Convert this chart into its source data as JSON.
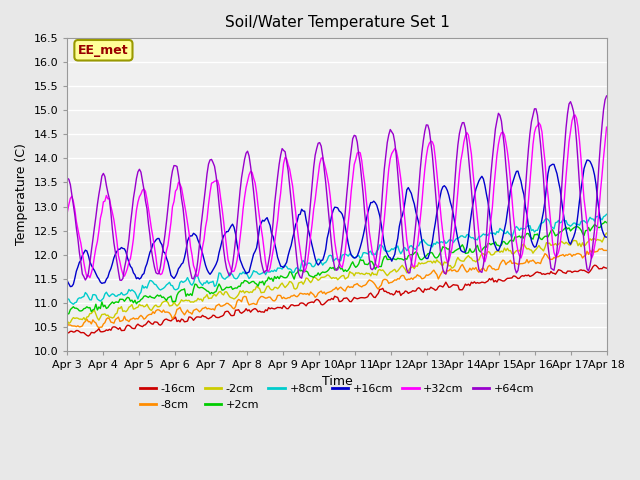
{
  "title": "Soil/Water Temperature Set 1",
  "xlabel": "Time",
  "ylabel": "Temperature (C)",
  "ylim": [
    10.0,
    16.5
  ],
  "annotation_text": "EE_met",
  "annotation_box_color": "#FFFF99",
  "annotation_border_color": "#999900",
  "annotation_text_color": "#990000",
  "background_color": "#E8E8E8",
  "plot_bg_color": "#F0F0F0",
  "series": [
    {
      "label": "-16cm",
      "color": "#CC0000"
    },
    {
      "label": "-8cm",
      "color": "#FF8C00"
    },
    {
      "label": "-2cm",
      "color": "#CCCC00"
    },
    {
      "label": "+2cm",
      "color": "#00CC00"
    },
    {
      "label": "+8cm",
      "color": "#00CCCC"
    },
    {
      "label": "+16cm",
      "color": "#0000CC"
    },
    {
      "label": "+32cm",
      "color": "#FF00FF"
    },
    {
      "label": "+64cm",
      "color": "#9900CC"
    }
  ],
  "x_tick_labels": [
    "Apr 3",
    "Apr 4",
    "Apr 5",
    "Apr 6",
    "Apr 7",
    "Apr 8",
    "Apr 9",
    "Apr 10",
    "Apr 11",
    "Apr 12",
    "Apr 13",
    "Apr 14",
    "Apr 15",
    "Apr 16",
    "Apr 17",
    "Apr 18"
  ],
  "n_days": 15,
  "points_per_day": 24
}
